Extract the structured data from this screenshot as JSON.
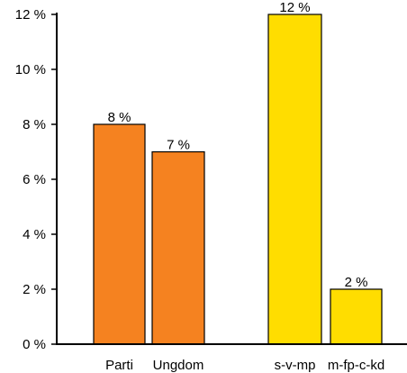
{
  "chart_data": {
    "type": "bar",
    "categories": [
      "Parti",
      "Ungdom",
      "s-v-mp",
      "m-fp-c-kd"
    ],
    "values": [
      8,
      7,
      12,
      2
    ],
    "data_labels": [
      "8 %",
      "7 %",
      "12 %",
      "2 %"
    ],
    "bar_colors": [
      "#F58220",
      "#F58220",
      "#FFDD00",
      "#FFDD00"
    ],
    "ylim": [
      0,
      12
    ],
    "yticks": [
      0,
      2,
      4,
      6,
      8,
      10,
      12
    ],
    "ytick_labels": [
      "0 %",
      "2 %",
      "4 %",
      "6 %",
      "8 %",
      "10 %",
      "12 %"
    ],
    "grid": false,
    "title": "",
    "xlabel": "",
    "ylabel": ""
  }
}
